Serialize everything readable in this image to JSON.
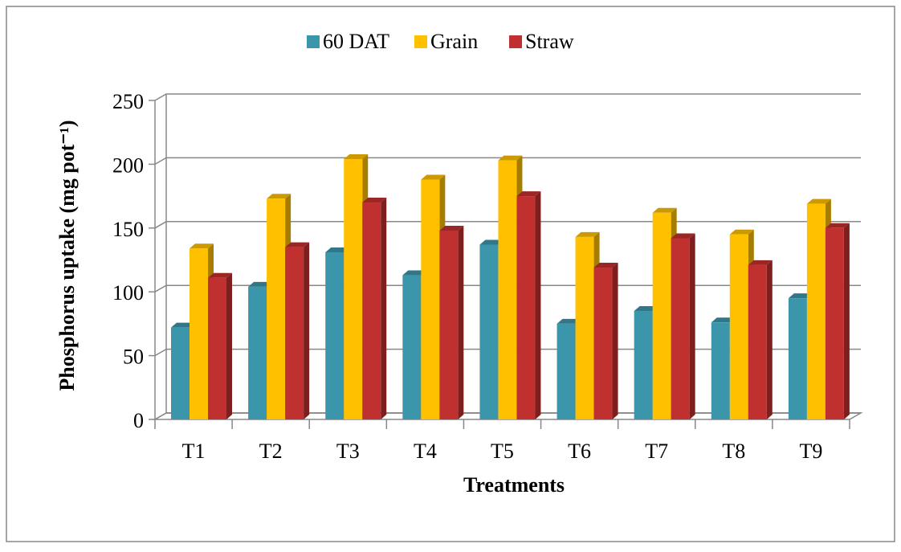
{
  "chart_data": {
    "type": "bar3d",
    "x_label": "Treatments",
    "y_label": "Phosphorus uptake (mg pot⁻¹)",
    "categories": [
      "T1",
      "T2",
      "T3",
      "T4",
      "T5",
      "T6",
      "T7",
      "T8",
      "T9"
    ],
    "series": [
      {
        "name": "60 DAT",
        "color": "#3c96ab",
        "values": [
          72,
          104,
          131,
          113,
          137,
          75,
          85,
          76,
          95
        ]
      },
      {
        "name": "Grain",
        "color": "#ffc000",
        "values": [
          134,
          173,
          204,
          188,
          203,
          143,
          162,
          145,
          169
        ]
      },
      {
        "name": "Straw",
        "color": "#c0302f",
        "values": [
          111,
          135,
          170,
          148,
          175,
          119,
          142,
          121,
          150
        ]
      }
    ],
    "ylim": [
      0,
      250
    ],
    "yticks": [
      0,
      50,
      100,
      150,
      200,
      250
    ],
    "grid": true,
    "legend": "top"
  }
}
